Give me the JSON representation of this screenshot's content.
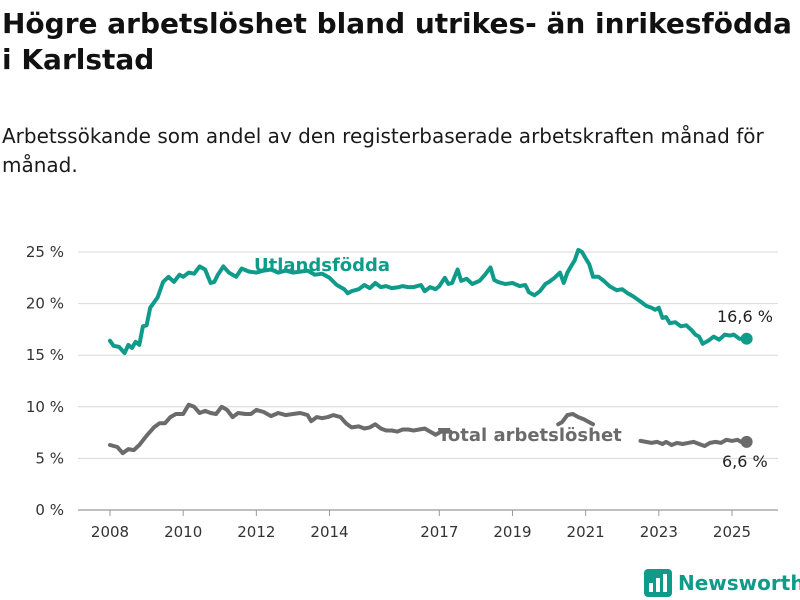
{
  "title": "Högre arbetslöshet bland utrikes- än inrikesfödda i Karlstad",
  "subtitle": "Arbetssökande som andel av den registerbaserade arbetskraften månad för månad.",
  "brand": {
    "name": "Newsworthy",
    "color": "#0f9b8a",
    "icon": "bar-chart-logo-icon"
  },
  "chart_data": {
    "type": "line",
    "ylim": [
      0,
      25
    ],
    "xlim": [
      2008,
      2025.75
    ],
    "yticks": [
      {
        "value": 0,
        "label": "0 %"
      },
      {
        "value": 5,
        "label": "5 %"
      },
      {
        "value": 10,
        "label": "10 %"
      },
      {
        "value": 15,
        "label": "15 %"
      },
      {
        "value": 20,
        "label": "20 %"
      },
      {
        "value": 25,
        "label": "25 %"
      }
    ],
    "xticks": [
      {
        "value": 2008,
        "label": "2008"
      },
      {
        "value": 2010,
        "label": "2010"
      },
      {
        "value": 2012,
        "label": "2012"
      },
      {
        "value": 2014,
        "label": "2014"
      },
      {
        "value": 2017,
        "label": "2017"
      },
      {
        "value": 2019,
        "label": "2019"
      },
      {
        "value": 2021,
        "label": "2021"
      },
      {
        "value": 2023,
        "label": "2023"
      },
      {
        "value": 2025,
        "label": "2025"
      }
    ],
    "grid": true,
    "series": [
      {
        "name": "Utlandsfödda",
        "color": "#0f9b8a",
        "end_label": "16,6 %",
        "points": [
          [
            2008.0,
            16.4
          ],
          [
            2008.1,
            15.9
          ],
          [
            2008.25,
            15.8
          ],
          [
            2008.4,
            15.2
          ],
          [
            2008.5,
            16.0
          ],
          [
            2008.6,
            15.7
          ],
          [
            2008.7,
            16.3
          ],
          [
            2008.8,
            16.0
          ],
          [
            2008.9,
            17.8
          ],
          [
            2009.0,
            17.9
          ],
          [
            2009.1,
            19.6
          ],
          [
            2009.3,
            20.6
          ],
          [
            2009.45,
            22.1
          ],
          [
            2009.6,
            22.6
          ],
          [
            2009.75,
            22.1
          ],
          [
            2009.9,
            22.8
          ],
          [
            2010.0,
            22.6
          ],
          [
            2010.15,
            23.0
          ],
          [
            2010.3,
            22.9
          ],
          [
            2010.45,
            23.6
          ],
          [
            2010.6,
            23.3
          ],
          [
            2010.75,
            22.0
          ],
          [
            2010.85,
            22.1
          ],
          [
            2010.95,
            22.8
          ],
          [
            2011.1,
            23.6
          ],
          [
            2011.25,
            23.0
          ],
          [
            2011.45,
            22.6
          ],
          [
            2011.6,
            23.4
          ],
          [
            2011.8,
            23.1
          ],
          [
            2012.0,
            23.0
          ],
          [
            2012.2,
            23.2
          ],
          [
            2012.4,
            23.3
          ],
          [
            2012.6,
            23.0
          ],
          [
            2012.8,
            23.2
          ],
          [
            2013.0,
            23.0
          ],
          [
            2013.2,
            23.1
          ],
          [
            2013.4,
            23.2
          ],
          [
            2013.6,
            22.8
          ],
          [
            2013.8,
            22.9
          ],
          [
            2014.0,
            22.5
          ],
          [
            2014.2,
            21.8
          ],
          [
            2014.4,
            21.4
          ],
          [
            2014.5,
            21.0
          ],
          [
            2014.6,
            21.2
          ],
          [
            2014.8,
            21.4
          ],
          [
            2014.95,
            21.8
          ],
          [
            2015.1,
            21.5
          ],
          [
            2015.25,
            22.0
          ],
          [
            2015.4,
            21.6
          ],
          [
            2015.55,
            21.7
          ],
          [
            2015.7,
            21.5
          ],
          [
            2015.9,
            21.6
          ],
          [
            2016.0,
            21.7
          ],
          [
            2016.15,
            21.6
          ],
          [
            2016.3,
            21.6
          ],
          [
            2016.5,
            21.8
          ],
          [
            2016.6,
            21.2
          ],
          [
            2016.75,
            21.6
          ],
          [
            2016.9,
            21.4
          ],
          [
            2017.0,
            21.7
          ],
          [
            2017.15,
            22.5
          ],
          [
            2017.25,
            21.9
          ],
          [
            2017.35,
            22.0
          ],
          [
            2017.5,
            23.3
          ],
          [
            2017.6,
            22.2
          ],
          [
            2017.75,
            22.4
          ],
          [
            2017.9,
            21.9
          ],
          [
            2018.1,
            22.2
          ],
          [
            2018.25,
            22.8
          ],
          [
            2018.4,
            23.5
          ],
          [
            2018.5,
            22.3
          ],
          [
            2018.6,
            22.1
          ],
          [
            2018.8,
            21.9
          ],
          [
            2019.0,
            22.0
          ],
          [
            2019.2,
            21.7
          ],
          [
            2019.35,
            21.8
          ],
          [
            2019.45,
            21.1
          ],
          [
            2019.6,
            20.8
          ],
          [
            2019.75,
            21.2
          ],
          [
            2019.9,
            21.9
          ],
          [
            2020.0,
            22.1
          ],
          [
            2020.15,
            22.5
          ],
          [
            2020.3,
            23.0
          ],
          [
            2020.4,
            22.0
          ],
          [
            2020.5,
            23.0
          ],
          [
            2020.6,
            23.6
          ],
          [
            2020.7,
            24.2
          ],
          [
            2020.8,
            25.2
          ],
          [
            2020.9,
            25.0
          ],
          [
            2021.0,
            24.4
          ],
          [
            2021.1,
            23.8
          ],
          [
            2021.2,
            22.6
          ],
          [
            2021.35,
            22.6
          ],
          [
            2021.5,
            22.2
          ],
          [
            2021.65,
            21.7
          ],
          [
            2021.85,
            21.3
          ],
          [
            2022.0,
            21.4
          ],
          [
            2022.15,
            21.0
          ],
          [
            2022.3,
            20.7
          ],
          [
            2022.5,
            20.2
          ],
          [
            2022.65,
            19.8
          ],
          [
            2022.8,
            19.6
          ],
          [
            2022.9,
            19.4
          ],
          [
            2023.0,
            19.6
          ],
          [
            2023.1,
            18.6
          ],
          [
            2023.2,
            18.7
          ],
          [
            2023.3,
            18.1
          ],
          [
            2023.45,
            18.2
          ],
          [
            2023.6,
            17.8
          ],
          [
            2023.75,
            17.9
          ],
          [
            2023.9,
            17.4
          ],
          [
            2024.0,
            17.0
          ],
          [
            2024.1,
            16.8
          ],
          [
            2024.2,
            16.1
          ],
          [
            2024.35,
            16.4
          ],
          [
            2024.5,
            16.8
          ],
          [
            2024.65,
            16.5
          ],
          [
            2024.8,
            17.0
          ],
          [
            2024.95,
            16.9
          ],
          [
            2025.05,
            17.0
          ],
          [
            2025.2,
            16.6
          ],
          [
            2025.4,
            16.6
          ]
        ]
      },
      {
        "name": "Total arbetslöshet",
        "color": "#6b6b6b",
        "end_label": "6,6 %",
        "points": [
          [
            2008.0,
            6.3
          ],
          [
            2008.2,
            6.1
          ],
          [
            2008.35,
            5.5
          ],
          [
            2008.5,
            5.9
          ],
          [
            2008.65,
            5.8
          ],
          [
            2008.8,
            6.3
          ],
          [
            2009.0,
            7.2
          ],
          [
            2009.2,
            8.0
          ],
          [
            2009.35,
            8.4
          ],
          [
            2009.5,
            8.4
          ],
          [
            2009.65,
            9.0
          ],
          [
            2009.8,
            9.3
          ],
          [
            2010.0,
            9.3
          ],
          [
            2010.15,
            10.2
          ],
          [
            2010.3,
            10.0
          ],
          [
            2010.45,
            9.4
          ],
          [
            2010.6,
            9.6
          ],
          [
            2010.75,
            9.4
          ],
          [
            2010.9,
            9.3
          ],
          [
            2011.05,
            10.0
          ],
          [
            2011.2,
            9.7
          ],
          [
            2011.35,
            9.0
          ],
          [
            2011.5,
            9.4
          ],
          [
            2011.7,
            9.3
          ],
          [
            2011.85,
            9.3
          ],
          [
            2012.0,
            9.7
          ],
          [
            2012.2,
            9.5
          ],
          [
            2012.4,
            9.1
          ],
          [
            2012.6,
            9.4
          ],
          [
            2012.8,
            9.2
          ],
          [
            2013.0,
            9.3
          ],
          [
            2013.2,
            9.4
          ],
          [
            2013.4,
            9.2
          ],
          [
            2013.5,
            8.6
          ],
          [
            2013.65,
            9.0
          ],
          [
            2013.8,
            8.9
          ],
          [
            2013.95,
            9.0
          ],
          [
            2014.1,
            9.2
          ],
          [
            2014.3,
            9.0
          ],
          [
            2014.45,
            8.4
          ],
          [
            2014.6,
            8.0
          ],
          [
            2014.8,
            8.1
          ],
          [
            2014.95,
            7.9
          ],
          [
            2015.1,
            8.0
          ],
          [
            2015.25,
            8.3
          ],
          [
            2015.4,
            7.9
          ],
          [
            2015.55,
            7.7
          ],
          [
            2015.7,
            7.7
          ],
          [
            2015.85,
            7.6
          ],
          [
            2016.0,
            7.8
          ],
          [
            2016.15,
            7.8
          ],
          [
            2016.3,
            7.7
          ],
          [
            2016.45,
            7.8
          ],
          [
            2016.6,
            7.9
          ],
          [
            2016.75,
            7.6
          ],
          [
            2016.9,
            7.3
          ],
          [
            2017.05,
            7.6
          ],
          [
            2017.2,
            7.6
          ],
          [
            2017.3,
            7.6
          ]
        ],
        "points_b": [
          [
            2020.25,
            8.3
          ],
          [
            2020.35,
            8.5
          ],
          [
            2020.5,
            9.2
          ],
          [
            2020.65,
            9.3
          ],
          [
            2020.8,
            9.0
          ],
          [
            2020.95,
            8.8
          ],
          [
            2021.1,
            8.5
          ],
          [
            2021.2,
            8.3
          ]
        ],
        "points_c": [
          [
            2022.5,
            6.7
          ],
          [
            2022.65,
            6.6
          ],
          [
            2022.8,
            6.5
          ],
          [
            2022.95,
            6.6
          ],
          [
            2023.1,
            6.4
          ],
          [
            2023.2,
            6.6
          ],
          [
            2023.35,
            6.3
          ],
          [
            2023.5,
            6.5
          ],
          [
            2023.65,
            6.4
          ],
          [
            2023.8,
            6.5
          ],
          [
            2023.95,
            6.6
          ],
          [
            2024.1,
            6.4
          ],
          [
            2024.25,
            6.2
          ],
          [
            2024.4,
            6.5
          ],
          [
            2024.55,
            6.6
          ],
          [
            2024.7,
            6.5
          ],
          [
            2024.85,
            6.8
          ],
          [
            2025.0,
            6.7
          ],
          [
            2025.15,
            6.8
          ],
          [
            2025.25,
            6.6
          ],
          [
            2025.4,
            6.6
          ]
        ]
      }
    ]
  }
}
